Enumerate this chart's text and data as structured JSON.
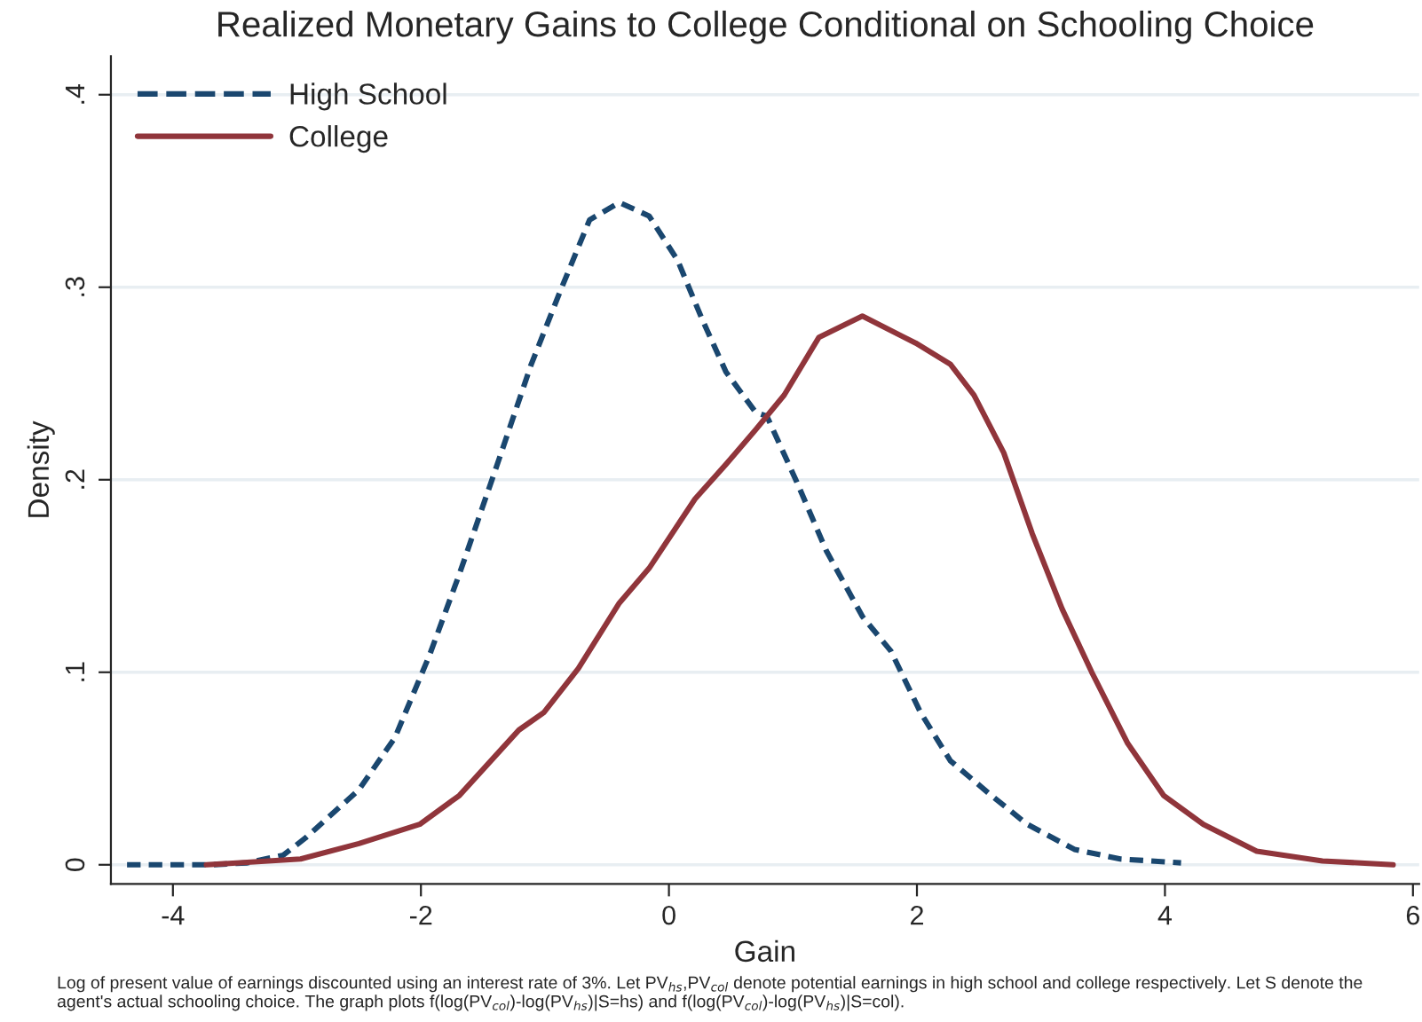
{
  "chart_data": {
    "type": "line",
    "title": "Realized Monetary Gains to College Conditional on Schooling Choice",
    "xlabel": "Gain",
    "ylabel": "Density",
    "xlim": [
      -4.5,
      6.05
    ],
    "xticks": [
      -4,
      -2,
      0,
      2,
      4,
      6
    ],
    "ylim": [
      -0.01,
      0.42
    ],
    "yticks": [
      {
        "value": 0,
        "label": "0"
      },
      {
        "value": 0.1,
        "label": ".1"
      },
      {
        "value": 0.2,
        "label": ".2"
      },
      {
        "value": 0.3,
        "label": ".3"
      },
      {
        "value": 0.4,
        "label": ".4"
      }
    ],
    "grid": "y",
    "legend": "top left",
    "series": [
      {
        "name": "High School",
        "color": "#1a476f",
        "line_style": "dashed",
        "x": [
          -4.37,
          -3.69,
          -3.4,
          -3.11,
          -2.93,
          -2.5,
          -2.21,
          -1.93,
          -1.69,
          -1.4,
          -1.11,
          -0.87,
          -0.64,
          -0.4,
          -0.16,
          0.07,
          0.27,
          0.46,
          0.7,
          0.79,
          1.03,
          1.27,
          1.56,
          1.79,
          2.03,
          2.27,
          2.6,
          2.89,
          3.27,
          3.64,
          4.13
        ],
        "values": [
          0,
          0,
          0.001,
          0.005,
          0.014,
          0.039,
          0.066,
          0.109,
          0.151,
          0.205,
          0.26,
          0.299,
          0.335,
          0.344,
          0.337,
          0.314,
          0.283,
          0.256,
          0.235,
          0.233,
          0.199,
          0.163,
          0.129,
          0.111,
          0.079,
          0.054,
          0.036,
          0.021,
          0.008,
          0.003,
          0.001
        ]
      },
      {
        "name": "College",
        "color": "#90353b",
        "line_style": "solid",
        "x": [
          -3.73,
          -2.97,
          -2.5,
          -2.01,
          -1.69,
          -1.21,
          -1.01,
          -0.73,
          -0.4,
          -0.16,
          0.21,
          0.46,
          0.7,
          0.93,
          1.21,
          1.56,
          1.99,
          2.27,
          2.46,
          2.7,
          2.93,
          3.17,
          3.41,
          3.7,
          3.99,
          4.31,
          4.74,
          5.27,
          5.84
        ],
        "values": [
          0,
          0.003,
          0.011,
          0.021,
          0.036,
          0.07,
          0.079,
          0.102,
          0.136,
          0.154,
          0.19,
          0.208,
          0.226,
          0.244,
          0.274,
          0.285,
          0.271,
          0.26,
          0.244,
          0.214,
          0.172,
          0.133,
          0.1,
          0.063,
          0.036,
          0.021,
          0.007,
          0.002,
          0
        ]
      }
    ],
    "annotations": [
      "Log of present value of earnings discounted using an interest rate of 3%. Let PV$_{hs}$,PV$_{col}$ denote potential earnings in high school and college respectively. Let S denote the agent's actual schooling choice. The graph plots f(log(PV$_{col}$)-log(PV$_{hs}$)|S=hs) and f(log(PV$_{col}$)-log(PV$_{hs}$)|S=col)."
    ]
  }
}
